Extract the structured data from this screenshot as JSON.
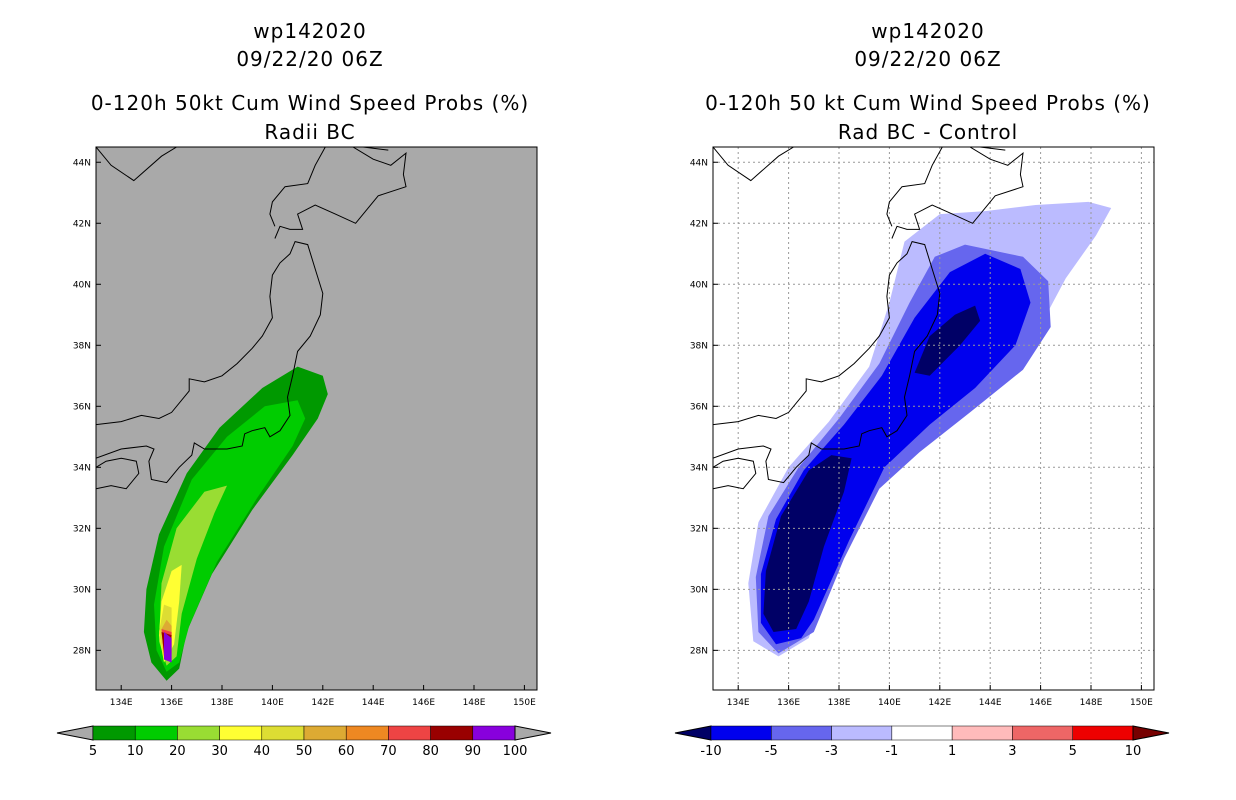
{
  "chart_data": [
    {
      "type": "contour_map",
      "storm_id": "wp142020",
      "datetime": "09/22/20 06Z",
      "title": "0-120h 50kt Cum Wind Speed Probs (%)",
      "subtitle": "Radii BC",
      "lon_range": [
        133,
        150.5
      ],
      "lat_range": [
        26.7,
        44.5
      ],
      "lon_ticks": [
        "134E",
        "136E",
        "138E",
        "140E",
        "142E",
        "144E",
        "146E",
        "148E",
        "150E"
      ],
      "lat_ticks": [
        "28N",
        "30N",
        "32N",
        "34N",
        "36N",
        "38N",
        "40N",
        "42N",
        "44N"
      ],
      "background_color": "#a9a9a9",
      "colorbar": {
        "labels": [
          "5",
          "10",
          "20",
          "30",
          "40",
          "50",
          "60",
          "70",
          "80",
          "90",
          "100"
        ],
        "colors": [
          "#009900",
          "#00cc00",
          "#99dd33",
          "#ffff33",
          "#dddd33",
          "#ddaa33",
          "#ee8822",
          "#ee4444",
          "#990000",
          "#8800dd"
        ]
      },
      "contours": [
        {
          "level": 5,
          "color": "#009900",
          "lonlat": [
            [
              135.8,
              27.0
            ],
            [
              135.2,
              27.6
            ],
            [
              134.9,
              28.6
            ],
            [
              135.0,
              30.0
            ],
            [
              135.5,
              31.8
            ],
            [
              136.6,
              33.8
            ],
            [
              137.9,
              35.3
            ],
            [
              139.6,
              36.6
            ],
            [
              141.0,
              37.3
            ],
            [
              142.0,
              37.0
            ],
            [
              142.2,
              36.4
            ],
            [
              141.8,
              35.6
            ],
            [
              140.8,
              34.4
            ],
            [
              139.2,
              32.6
            ],
            [
              137.6,
              30.5
            ],
            [
              136.6,
              28.6
            ],
            [
              136.3,
              27.4
            ]
          ]
        },
        {
          "level": 10,
          "color": "#00cc00",
          "lonlat": [
            [
              135.8,
              27.3
            ],
            [
              135.4,
              28.0
            ],
            [
              135.3,
              29.5
            ],
            [
              135.7,
              31.4
            ],
            [
              136.8,
              33.6
            ],
            [
              138.2,
              35.0
            ],
            [
              139.7,
              36.0
            ],
            [
              141.0,
              36.2
            ],
            [
              141.3,
              35.6
            ],
            [
              140.8,
              34.7
            ],
            [
              139.4,
              33.0
            ],
            [
              137.8,
              30.9
            ],
            [
              136.7,
              28.8
            ],
            [
              136.3,
              27.6
            ]
          ]
        },
        {
          "level": 20,
          "color": "#99dd33",
          "lonlat": [
            [
              135.8,
              27.5
            ],
            [
              135.5,
              28.3
            ],
            [
              135.6,
              30.2
            ],
            [
              136.2,
              32.0
            ],
            [
              137.3,
              33.2
            ],
            [
              138.2,
              33.4
            ],
            [
              137.7,
              32.5
            ],
            [
              137.0,
              31.0
            ],
            [
              136.4,
              29.2
            ],
            [
              136.2,
              27.8
            ]
          ]
        },
        {
          "level": 30,
          "color": "#ffff33",
          "lonlat": [
            [
              135.7,
              27.6
            ],
            [
              135.5,
              28.5
            ],
            [
              135.6,
              29.6
            ],
            [
              136.0,
              30.6
            ],
            [
              136.4,
              30.8
            ],
            [
              136.3,
              29.6
            ],
            [
              136.1,
              28.2
            ]
          ]
        },
        {
          "level": 40,
          "color": "#dddd33",
          "lonlat": [
            [
              135.7,
              27.7
            ],
            [
              135.5,
              28.6
            ],
            [
              135.7,
              29.5
            ],
            [
              136.0,
              29.4
            ],
            [
              136.0,
              28.0
            ]
          ]
        },
        {
          "level": 50,
          "color": "#ddaa33",
          "lonlat": [
            [
              135.7,
              27.8
            ],
            [
              135.6,
              28.7
            ],
            [
              135.8,
              29.0
            ],
            [
              136.0,
              28.8
            ],
            [
              136.0,
              27.9
            ]
          ]
        },
        {
          "level": 70,
          "color": "#ee4444",
          "lonlat": [
            [
              135.7,
              27.8
            ],
            [
              135.6,
              28.7
            ],
            [
              136.0,
              28.6
            ],
            [
              136.0,
              27.9
            ]
          ]
        },
        {
          "level": 90,
          "color": "#990000",
          "lonlat": [
            [
              135.7,
              27.9
            ],
            [
              135.6,
              28.6
            ],
            [
              136.0,
              28.5
            ],
            [
              135.9,
              27.9
            ]
          ]
        },
        {
          "level": 100,
          "color": "#8800dd",
          "lonlat": [
            [
              135.7,
              27.7
            ],
            [
              135.7,
              28.6
            ],
            [
              136.0,
              28.4
            ],
            [
              136.0,
              27.6
            ]
          ]
        }
      ]
    },
    {
      "type": "contour_map",
      "storm_id": "wp142020",
      "datetime": "09/22/20 06Z",
      "title": "0-120h 50 kt Cum Wind Speed Probs (%)",
      "subtitle": "Rad BC - Control",
      "lon_range": [
        133,
        150.5
      ],
      "lat_range": [
        26.7,
        44.5
      ],
      "lon_ticks": [
        "134E",
        "136E",
        "138E",
        "140E",
        "142E",
        "144E",
        "146E",
        "148E",
        "150E"
      ],
      "lat_ticks": [
        "28N",
        "30N",
        "32N",
        "34N",
        "36N",
        "38N",
        "40N",
        "42N",
        "44N"
      ],
      "background_color": "#ffffff",
      "colorbar": {
        "labels": [
          "-10",
          "-5",
          "-3",
          "-1",
          "1",
          "3",
          "5",
          "10"
        ],
        "colors": [
          "#000066",
          "#0000ee",
          "#6666ee",
          "#bbbbff",
          "#ffffff",
          "#ffbbbb",
          "#ee6666",
          "#ee0000",
          "#770000"
        ]
      },
      "contours": [
        {
          "level": -1,
          "color": "#bbbbff",
          "lonlat": [
            [
              135.6,
              27.8
            ],
            [
              134.6,
              28.3
            ],
            [
              134.4,
              30.2
            ],
            [
              134.8,
              32.2
            ],
            [
              136.0,
              34.0
            ],
            [
              137.6,
              35.5
            ],
            [
              139.2,
              37.3
            ],
            [
              140.0,
              39.4
            ],
            [
              140.6,
              41.4
            ],
            [
              142.0,
              42.3
            ],
            [
              143.8,
              42.4
            ],
            [
              145.8,
              42.6
            ],
            [
              147.9,
              42.7
            ],
            [
              148.8,
              42.5
            ],
            [
              148.2,
              41.6
            ],
            [
              147.0,
              40.2
            ],
            [
              146.1,
              38.8
            ],
            [
              144.6,
              37.2
            ],
            [
              142.3,
              35.7
            ],
            [
              140.4,
              34.2
            ],
            [
              139.0,
              33.0
            ],
            [
              137.7,
              30.6
            ],
            [
              136.8,
              28.4
            ]
          ]
        },
        {
          "level": -3,
          "color": "#6666ee",
          "lonlat": [
            [
              135.6,
              27.9
            ],
            [
              134.8,
              28.6
            ],
            [
              134.7,
              30.4
            ],
            [
              135.2,
              32.4
            ],
            [
              136.4,
              34.0
            ],
            [
              138.0,
              35.6
            ],
            [
              139.6,
              37.4
            ],
            [
              140.8,
              39.4
            ],
            [
              141.8,
              40.9
            ],
            [
              143.0,
              41.3
            ],
            [
              145.3,
              40.9
            ],
            [
              146.3,
              40.1
            ],
            [
              146.4,
              38.6
            ],
            [
              145.3,
              37.2
            ],
            [
              143.2,
              35.8
            ],
            [
              141.2,
              34.5
            ],
            [
              139.6,
              33.3
            ],
            [
              138.2,
              31.0
            ],
            [
              137.0,
              28.6
            ]
          ]
        },
        {
          "level": -5,
          "color": "#0000ee",
          "lonlat": [
            [
              135.5,
              28.2
            ],
            [
              134.9,
              28.9
            ],
            [
              134.9,
              30.5
            ],
            [
              135.5,
              32.3
            ],
            [
              136.6,
              33.9
            ],
            [
              138.2,
              35.4
            ],
            [
              139.7,
              37.0
            ],
            [
              141.0,
              38.9
            ],
            [
              142.4,
              40.4
            ],
            [
              143.8,
              41.0
            ],
            [
              145.2,
              40.5
            ],
            [
              145.6,
              39.4
            ],
            [
              145.0,
              38.0
            ],
            [
              143.4,
              36.6
            ],
            [
              141.6,
              35.4
            ],
            [
              139.8,
              34.0
            ],
            [
              138.4,
              31.6
            ],
            [
              137.0,
              29.0
            ],
            [
              136.5,
              28.4
            ]
          ]
        },
        {
          "level": -10,
          "color": "#000066",
          "lonlat": [
            [
              135.4,
              28.6
            ],
            [
              135.0,
              29.2
            ],
            [
              135.1,
              30.6
            ],
            [
              135.7,
              32.4
            ],
            [
              136.8,
              33.9
            ],
            [
              137.7,
              34.4
            ],
            [
              138.5,
              34.3
            ],
            [
              138.2,
              33.2
            ],
            [
              137.4,
              31.4
            ],
            [
              136.8,
              29.6
            ],
            [
              136.3,
              28.7
            ]
          ]
        },
        {
          "level": -10,
          "color": "#000066",
          "lonlat": [
            [
              141.0,
              37.1
            ],
            [
              141.6,
              38.3
            ],
            [
              142.6,
              39.0
            ],
            [
              143.4,
              39.3
            ],
            [
              143.6,
              38.8
            ],
            [
              142.8,
              38.0
            ],
            [
              141.6,
              37.0
            ]
          ]
        }
      ]
    }
  ]
}
